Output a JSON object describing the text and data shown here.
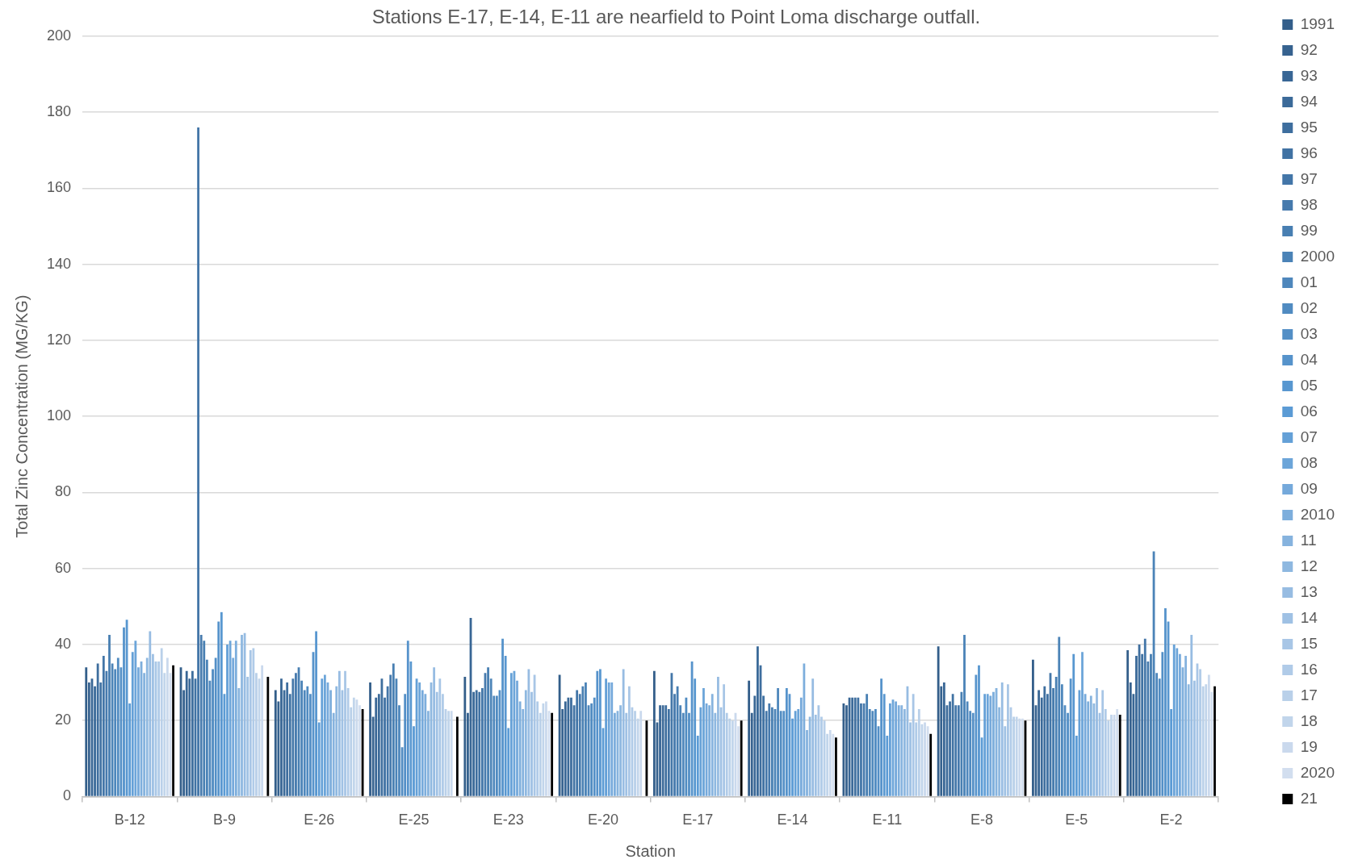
{
  "chart_data": {
    "type": "bar",
    "title": "Stations E-17, E-14, E-11 are nearfield to Point Loma discharge outfall.",
    "xlabel": "Station",
    "ylabel": "Total Zinc Concentration (MG/KG)",
    "categories": [
      "B-12",
      "B-9",
      "E-26",
      "E-25",
      "E-23",
      "E-20",
      "E-17",
      "E-14",
      "E-11",
      "E-8",
      "E-5",
      "E-2"
    ],
    "ylim": [
      0,
      200
    ],
    "yticks": [
      0,
      20,
      40,
      60,
      80,
      100,
      120,
      140,
      160,
      180,
      200
    ],
    "grid": "y",
    "legend": "right",
    "series": [
      {
        "name": "1991",
        "color": "#335e8a",
        "values": [
          34,
          34,
          28,
          30,
          31.5,
          32,
          33,
          30.5,
          24.5,
          39.5,
          36,
          38.5
        ]
      },
      {
        "name": "92",
        "color": "#36628f",
        "values": [
          30,
          28,
          25,
          21,
          22,
          23,
          19.5,
          22,
          24,
          29,
          24,
          30
        ]
      },
      {
        "name": "93",
        "color": "#386695",
        "values": [
          31,
          33,
          31,
          26,
          47,
          25,
          24,
          26.5,
          26,
          30,
          28,
          27
        ]
      },
      {
        "name": "94",
        "color": "#3b6a99",
        "values": [
          29,
          31,
          28,
          27,
          27.5,
          26,
          24,
          39.5,
          26,
          24,
          26,
          37
        ]
      },
      {
        "name": "95",
        "color": "#3e6e9e",
        "values": [
          35,
          33,
          30,
          31,
          28,
          26,
          24,
          34.5,
          26,
          25,
          29,
          40
        ]
      },
      {
        "name": "96",
        "color": "#4072a3",
        "values": [
          30,
          31,
          27,
          26,
          27.5,
          24,
          23,
          26.5,
          26,
          27,
          27,
          37.5
        ]
      },
      {
        "name": "97",
        "color": "#4376a8",
        "values": [
          37,
          176,
          31,
          29,
          28.5,
          28,
          32.5,
          22.5,
          24.5,
          24,
          32.5,
          41.5
        ]
      },
      {
        "name": "98",
        "color": "#467aad",
        "values": [
          33,
          42.5,
          32.5,
          32,
          32.5,
          27,
          27,
          24.5,
          24.5,
          24,
          28.5,
          35.5
        ]
      },
      {
        "name": "99",
        "color": "#487fb2",
        "values": [
          42.5,
          41,
          34,
          35,
          34,
          29,
          29,
          23.5,
          27,
          27.5,
          31.5,
          37.5
        ]
      },
      {
        "name": "2000",
        "color": "#4b83b7",
        "values": [
          35,
          36,
          30.5,
          31,
          31,
          30,
          24,
          23,
          23,
          42.5,
          42,
          64.5
        ]
      },
      {
        "name": "01",
        "color": "#4e87bc",
        "values": [
          33.5,
          30.5,
          28,
          24,
          26.5,
          24,
          22,
          28.5,
          22.5,
          25,
          29.5,
          32.5
        ]
      },
      {
        "name": "02",
        "color": "#508bc1",
        "values": [
          36.5,
          33.5,
          29,
          13,
          26.5,
          24.5,
          26,
          22.5,
          23,
          22.5,
          24,
          31
        ]
      },
      {
        "name": "03",
        "color": "#538fc6",
        "values": [
          34,
          36.5,
          27,
          27,
          28,
          26,
          22,
          22.5,
          18.5,
          22,
          22,
          38
        ]
      },
      {
        "name": "04",
        "color": "#5693cb",
        "values": [
          44.5,
          46,
          38,
          41,
          41.5,
          33,
          35.5,
          28.5,
          31,
          32,
          31,
          49.5
        ]
      },
      {
        "name": "05",
        "color": "#5897d0",
        "values": [
          46.5,
          48.5,
          43.5,
          35.5,
          37,
          33.5,
          31,
          27,
          27,
          34.5,
          37.5,
          46
        ]
      },
      {
        "name": "06",
        "color": "#5b9bd5",
        "values": [
          24.5,
          27,
          19.5,
          18.5,
          18,
          18,
          16,
          20.5,
          16,
          15.5,
          16,
          23
        ]
      },
      {
        "name": "07",
        "color": "#64a0d7",
        "values": [
          38,
          40,
          31,
          31,
          32.5,
          31,
          23.5,
          22.5,
          24.5,
          27,
          28,
          40
        ]
      },
      {
        "name": "08",
        "color": "#6ca5d9",
        "values": [
          41,
          41,
          32,
          30,
          33,
          30,
          28.5,
          23,
          25.5,
          27,
          38,
          39
        ]
      },
      {
        "name": "09",
        "color": "#75a9db",
        "values": [
          34,
          36.5,
          30,
          28,
          30.5,
          30,
          24.5,
          26,
          25,
          26.5,
          27,
          37.5
        ]
      },
      {
        "name": "2010",
        "color": "#7daedc",
        "values": [
          35.5,
          41,
          28,
          27,
          25,
          22,
          24,
          35,
          24,
          27.5,
          25,
          34
        ]
      },
      {
        "name": "11",
        "color": "#86b3de",
        "values": [
          32.5,
          28.5,
          22,
          22.5,
          23,
          22.5,
          27,
          17.5,
          24,
          28.5,
          26.5,
          37
        ]
      },
      {
        "name": "12",
        "color": "#8eb8e0",
        "values": [
          36.5,
          42.5,
          29,
          30,
          28,
          24,
          22,
          21,
          23,
          23.5,
          24.5,
          29.5
        ]
      },
      {
        "name": "13",
        "color": "#97bce2",
        "values": [
          43.5,
          43,
          33,
          34,
          33.5,
          33.5,
          31.5,
          31,
          29,
          30,
          28.5,
          42.5
        ]
      },
      {
        "name": "14",
        "color": "#9fc1e4",
        "values": [
          37.5,
          31.5,
          28,
          27.5,
          27.5,
          22,
          23.5,
          21.5,
          19.5,
          18.5,
          22,
          30.5
        ]
      },
      {
        "name": "15",
        "color": "#a8c6e6",
        "values": [
          35.5,
          38.5,
          33,
          31,
          32,
          29,
          29.5,
          24,
          27,
          29.5,
          28,
          35
        ]
      },
      {
        "name": "16",
        "color": "#b0cbe8",
        "values": [
          35.5,
          39,
          28.5,
          27,
          25,
          23.5,
          22,
          21,
          19.5,
          23.5,
          23,
          33.5
        ]
      },
      {
        "name": "17",
        "color": "#b9d0e9",
        "values": [
          39,
          32.5,
          23.5,
          23,
          22,
          22.5,
          20.5,
          20,
          23,
          21,
          20,
          29
        ]
      },
      {
        "name": "18",
        "color": "#c1d5eb",
        "values": [
          32.5,
          31,
          26,
          22.5,
          24.5,
          20.5,
          20,
          16.5,
          19,
          21,
          21.5,
          29.5
        ]
      },
      {
        "name": "19",
        "color": "#cad9ed",
        "values": [
          36.5,
          34.5,
          25.5,
          22.5,
          25,
          22.5,
          22,
          17.5,
          19.5,
          20.5,
          21.5,
          32
        ]
      },
      {
        "name": "2020",
        "color": "#d2deef",
        "values": [
          32.5,
          null,
          24,
          null,
          22.5,
          null,
          18.5,
          16.5,
          18.5,
          20.5,
          23,
          27.5
        ]
      },
      {
        "name": "21",
        "color": "#000000",
        "values": [
          34.5,
          31.5,
          23,
          21,
          22,
          20,
          20,
          15.5,
          16.5,
          20,
          21.5,
          29
        ]
      }
    ]
  }
}
